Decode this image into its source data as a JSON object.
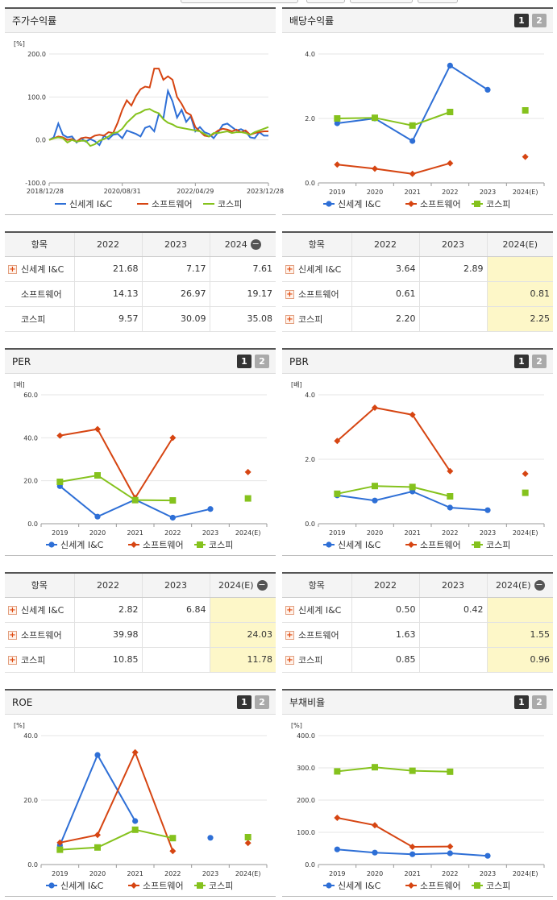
{
  "colors": {
    "blue": "#2e6fd6",
    "red": "#d64512",
    "green": "#85c21d"
  },
  "tabs": {
    "one": "1",
    "two": "2"
  },
  "stock": {
    "title": "주가수익률",
    "unit": "[%]",
    "chart_data": {
      "type": "line",
      "ylim": [
        -100,
        200
      ],
      "yticks": [
        "200.0",
        "100.0",
        "0.0",
        "-100.0"
      ],
      "xticks": [
        "2018/12/28",
        "2020/08/31",
        "2022/04/29",
        "2023/12/28"
      ],
      "series": [
        {
          "name": "신세계 I&C",
          "color": "#2e6fd6",
          "values": [
            0,
            6,
            38,
            12,
            6,
            8,
            -6,
            4,
            -4,
            2,
            -3,
            -12,
            10,
            2,
            12,
            14,
            4,
            22,
            18,
            14,
            8,
            28,
            32,
            20,
            60,
            50,
            114,
            90,
            52,
            70,
            42,
            55,
            20,
            30,
            18,
            14,
            4,
            18,
            35,
            38,
            30,
            22,
            25,
            20,
            6,
            4,
            18,
            10,
            10
          ]
        },
        {
          "name": "소프트웨어",
          "color": "#d64512",
          "values": [
            0,
            4,
            8,
            6,
            0,
            2,
            -4,
            4,
            6,
            4,
            10,
            12,
            10,
            18,
            16,
            40,
            70,
            92,
            80,
            102,
            118,
            124,
            122,
            166,
            166,
            140,
            148,
            140,
            100,
            84,
            64,
            58,
            30,
            20,
            10,
            8,
            14,
            22,
            26,
            24,
            20,
            24,
            18,
            22,
            12,
            16,
            18,
            20,
            20
          ]
        },
        {
          "name": "코스피",
          "color": "#85c21d",
          "values": [
            0,
            4,
            6,
            4,
            -6,
            0,
            -4,
            -2,
            -2,
            -14,
            -10,
            -2,
            2,
            8,
            16,
            18,
            26,
            40,
            50,
            60,
            64,
            70,
            72,
            66,
            62,
            48,
            40,
            36,
            30,
            28,
            26,
            24,
            22,
            20,
            14,
            8,
            16,
            16,
            18,
            20,
            16,
            18,
            18,
            16,
            12,
            18,
            22,
            26,
            30
          ]
        }
      ]
    }
  },
  "dividend": {
    "title": "배당수익률",
    "chart_data": {
      "type": "line",
      "ylim": [
        0,
        4
      ],
      "yticks": [
        "4.0",
        "2.0",
        "0.0"
      ],
      "categories": [
        "2019",
        "2020",
        "2021",
        "2022",
        "2023",
        "2024(E)"
      ],
      "series": [
        {
          "name": "신세계 I&C",
          "color": "#2e6fd6",
          "values": [
            1.85,
            2.0,
            1.3,
            3.64,
            2.89,
            null
          ]
        },
        {
          "name": "소프트웨어",
          "color": "#d64512",
          "values": [
            0.57,
            0.44,
            0.28,
            0.61,
            null,
            0.81
          ]
        },
        {
          "name": "코스피",
          "color": "#85c21d",
          "values": [
            2.0,
            2.02,
            1.78,
            2.2,
            null,
            2.25
          ]
        }
      ]
    }
  },
  "per": {
    "title": "PER",
    "unit": "[배]",
    "chart_data": {
      "type": "line",
      "ylim": [
        0,
        60
      ],
      "yticks": [
        "60.0",
        "40.0",
        "20.0",
        "0.0"
      ],
      "categories": [
        "2019",
        "2020",
        "2021",
        "2022",
        "2023",
        "2024(E)"
      ],
      "series": [
        {
          "name": "신세계 I&C",
          "color": "#2e6fd6",
          "values": [
            17.5,
            3.3,
            11.2,
            2.82,
            6.84,
            null
          ]
        },
        {
          "name": "소프트웨어",
          "color": "#d64512",
          "values": [
            41.0,
            44.0,
            12.0,
            39.98,
            null,
            24.03
          ]
        },
        {
          "name": "코스피",
          "color": "#85c21d",
          "values": [
            19.5,
            22.5,
            11.0,
            10.85,
            null,
            11.78
          ]
        }
      ]
    }
  },
  "pbr": {
    "title": "PBR",
    "unit": "[배]",
    "chart_data": {
      "type": "line",
      "ylim": [
        0,
        4
      ],
      "yticks": [
        "4.0",
        "2.0",
        "0.0"
      ],
      "categories": [
        "2019",
        "2020",
        "2021",
        "2022",
        "2023",
        "2024(E)"
      ],
      "series": [
        {
          "name": "신세계 I&C",
          "color": "#2e6fd6",
          "values": [
            0.88,
            0.72,
            1.0,
            0.5,
            0.42,
            null
          ]
        },
        {
          "name": "소프트웨어",
          "color": "#d64512",
          "values": [
            2.57,
            3.6,
            3.38,
            1.63,
            null,
            1.55
          ]
        },
        {
          "name": "코스피",
          "color": "#85c21d",
          "values": [
            0.93,
            1.17,
            1.14,
            0.85,
            null,
            0.96
          ]
        }
      ]
    }
  },
  "roe": {
    "title": "ROE",
    "unit": "[%]",
    "chart_data": {
      "type": "line",
      "ylim": [
        0,
        40
      ],
      "yticks": [
        "40.0",
        "20.0",
        "0.0"
      ],
      "categories": [
        "2019",
        "2020",
        "2021",
        "2022",
        "2023",
        "2024(E)"
      ],
      "series": [
        {
          "name": "신세계 I&C",
          "color": "#2e6fd6",
          "values": [
            6.0,
            34.0,
            13.5,
            null,
            8.3,
            null
          ]
        },
        {
          "name": "소프트웨어",
          "color": "#d64512",
          "values": [
            6.8,
            9.2,
            34.8,
            4.2,
            null,
            6.7
          ]
        },
        {
          "name": "코스피",
          "color": "#85c21d",
          "values": [
            4.6,
            5.3,
            10.8,
            8.2,
            null,
            8.5
          ]
        }
      ]
    }
  },
  "debt": {
    "title": "부채비율",
    "unit": "[%]",
    "chart_data": {
      "type": "line",
      "ylim": [
        0,
        400
      ],
      "yticks": [
        "400.0",
        "300.0",
        "200.0",
        "100.0",
        "0.0"
      ],
      "categories": [
        "2019",
        "2020",
        "2021",
        "2022",
        "2023",
        "2024(E)"
      ],
      "series": [
        {
          "name": "신세계 I&C",
          "color": "#2e6fd6",
          "values": [
            47,
            37,
            32,
            35,
            27,
            null
          ]
        },
        {
          "name": "소프트웨어",
          "color": "#d64512",
          "values": [
            145,
            122,
            55,
            56,
            null,
            null
          ]
        },
        {
          "name": "코스피",
          "color": "#85c21d",
          "values": [
            289,
            302,
            291,
            288,
            null,
            null
          ]
        }
      ]
    }
  },
  "table_stock": {
    "h0": "항목",
    "h1": "2022",
    "h2": "2023",
    "h3": "2024",
    "rows": [
      {
        "name": "신세계 I&C",
        "v": [
          "21.68",
          "7.17",
          "7.61"
        ]
      },
      {
        "name": "소프트웨어",
        "v": [
          "14.13",
          "26.97",
          "19.17"
        ]
      },
      {
        "name": "코스피",
        "v": [
          "9.57",
          "30.09",
          "35.08"
        ]
      }
    ]
  },
  "table_div": {
    "h0": "항목",
    "h1": "2022",
    "h2": "2023",
    "h3": "2024(E)",
    "rows": [
      {
        "name": "신세계 I&C",
        "v": [
          "3.64",
          "2.89",
          ""
        ]
      },
      {
        "name": "소프트웨어",
        "v": [
          "0.61",
          "",
          "0.81"
        ]
      },
      {
        "name": "코스피",
        "v": [
          "2.20",
          "",
          "2.25"
        ]
      }
    ]
  },
  "table_per": {
    "h0": "항목",
    "h1": "2022",
    "h2": "2023",
    "h3": "2024(E)",
    "rows": [
      {
        "name": "신세계 I&C",
        "v": [
          "2.82",
          "6.84",
          ""
        ]
      },
      {
        "name": "소프트웨어",
        "v": [
          "39.98",
          "",
          "24.03"
        ]
      },
      {
        "name": "코스피",
        "v": [
          "10.85",
          "",
          "11.78"
        ]
      }
    ]
  },
  "table_pbr": {
    "h0": "항목",
    "h1": "2022",
    "h2": "2023",
    "h3": "2024(E)",
    "rows": [
      {
        "name": "신세계 I&C",
        "v": [
          "0.50",
          "0.42",
          ""
        ]
      },
      {
        "name": "소프트웨어",
        "v": [
          "1.63",
          "",
          "1.55"
        ]
      },
      {
        "name": "코스피",
        "v": [
          "0.85",
          "",
          "0.96"
        ]
      }
    ]
  }
}
